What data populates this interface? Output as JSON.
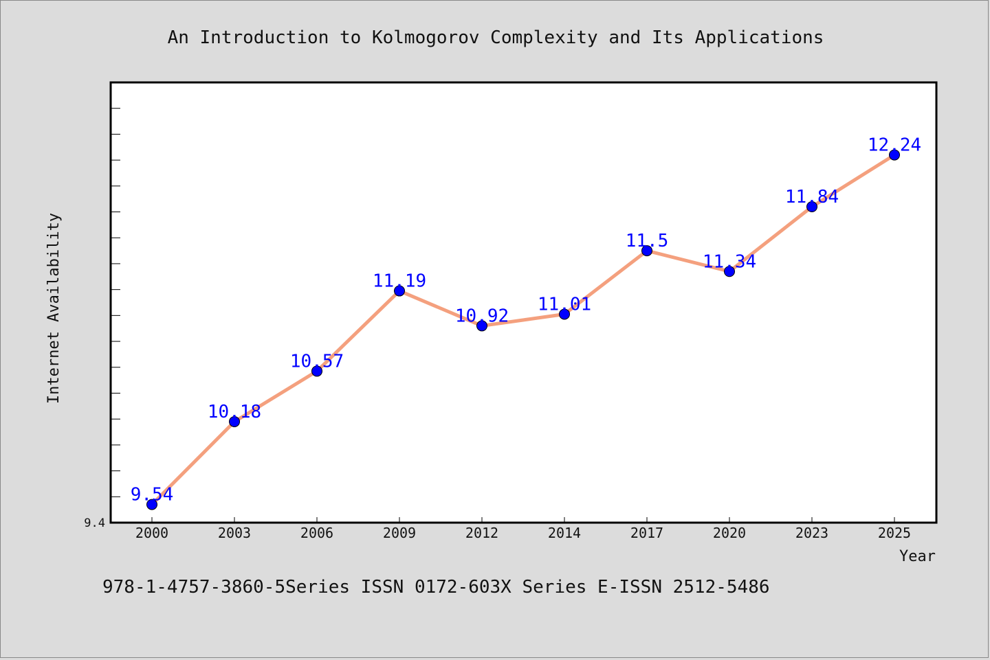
{
  "chart_data": {
    "type": "line",
    "title": "An Introduction to Kolmogorov Complexity and Its Applications",
    "xlabel": "Year",
    "ylabel": "Internet Availability",
    "categories": [
      "2000",
      "2003",
      "2006",
      "2009",
      "2012",
      "2014",
      "2017",
      "2020",
      "2023",
      "2025"
    ],
    "series": [
      {
        "values": [
          9.54,
          10.18,
          10.57,
          11.19,
          10.92,
          11.01,
          11.5,
          11.34,
          11.84,
          12.24
        ],
        "labels": [
          "9.54",
          "10.18",
          "10.57",
          "11.19",
          "10.92",
          "11.01",
          "11.5",
          "11.34",
          "11.84",
          "12.24"
        ]
      }
    ],
    "ylim": [
      9.4,
      12.8
    ],
    "ytick_labels": [
      "9.4"
    ],
    "grid": false,
    "line_color": "#f4a07e",
    "marker_color": "#0000ff",
    "label_color": "#0000ff"
  },
  "footer_text": "978-1-4757-3860-5Series ISSN 0172-603X Series E-ISSN 2512-5486"
}
